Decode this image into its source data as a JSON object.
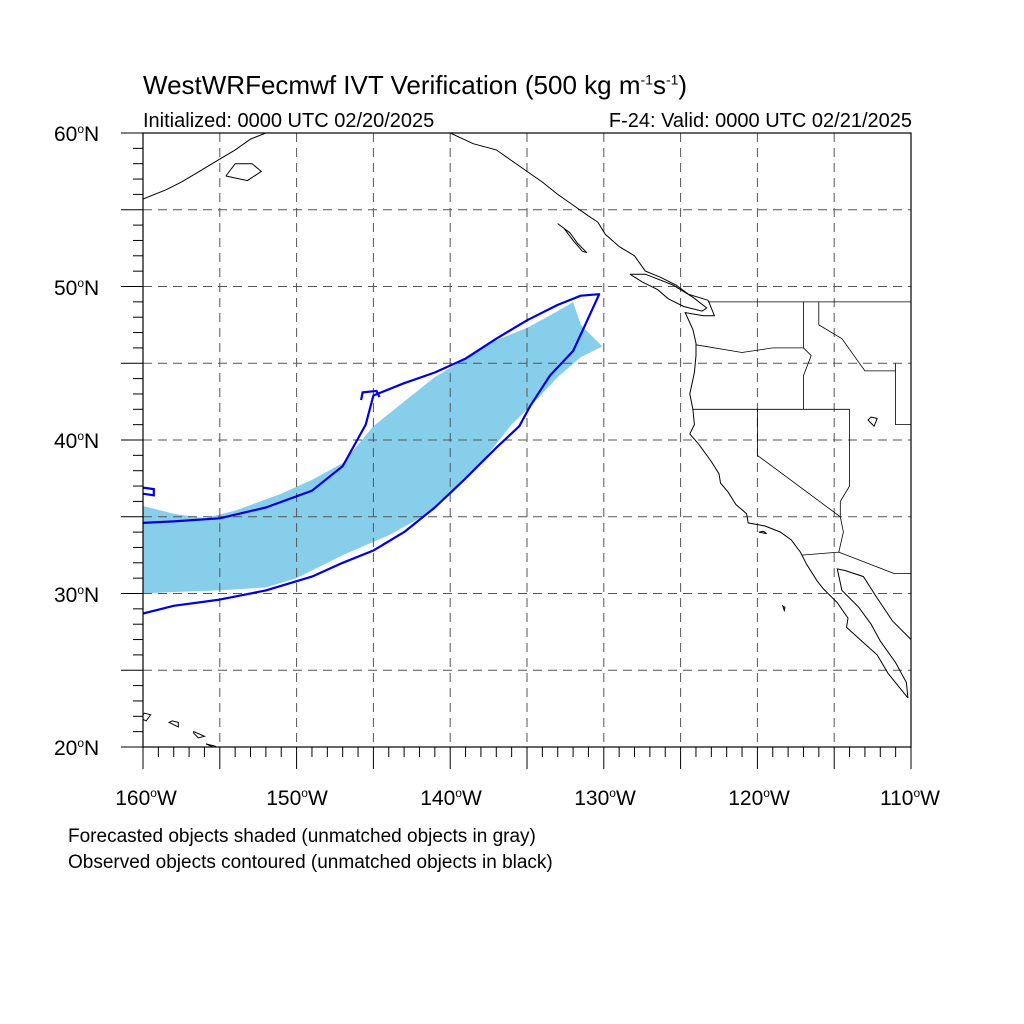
{
  "title": {
    "main": "WestWRFecmwf IVT Verification (500 kg m",
    "sup1": "-1",
    "mid": "s",
    "sup2": "-1",
    "end": ")"
  },
  "subtitle_left": "Initialized: 0000 UTC 02/20/2025",
  "subtitle_right": "F-24: Valid: 0000 UTC 02/21/2025",
  "lat_labels": [
    "60",
    "50",
    "40",
    "30",
    "20"
  ],
  "lon_labels": [
    "160",
    "150",
    "140",
    "130",
    "120",
    "110"
  ],
  "deg": "o",
  "lat_suffix": "N",
  "lon_suffix": "W",
  "notes": [
    "Forecasted objects shaded (unmatched objects in gray)",
    "Observed objects contoured (unmatched objects in black)"
  ],
  "colors": {
    "forecast_fill": "#87ceeb",
    "observed_contour": "#0000e6",
    "coast": "#000000",
    "grid": "#555555"
  },
  "map_extent": {
    "lon": [
      -160,
      -110
    ],
    "lat": [
      20,
      60
    ]
  },
  "forecast_object": [
    [
      -160,
      35.7
    ],
    [
      -158,
      35.2
    ],
    [
      -156,
      34.9
    ],
    [
      -154,
      35.4
    ],
    [
      -151,
      36.5
    ],
    [
      -149,
      37.4
    ],
    [
      -147,
      38.5
    ],
    [
      -145,
      40.9
    ],
    [
      -143,
      42.5
    ],
    [
      -141,
      44.1
    ],
    [
      -139,
      45.3
    ],
    [
      -137,
      46.5
    ],
    [
      -135,
      47.3
    ],
    [
      -133,
      48.4
    ],
    [
      -132,
      49.0
    ],
    [
      -131.5,
      47.5
    ],
    [
      -130.1,
      46.1
    ],
    [
      -131.5,
      45.4
    ],
    [
      -133,
      44.1
    ],
    [
      -134.5,
      42.5
    ],
    [
      -136,
      41.0
    ],
    [
      -138,
      38.5
    ],
    [
      -140,
      36.4
    ],
    [
      -142,
      34.9
    ],
    [
      -144,
      33.8
    ],
    [
      -147,
      32.5
    ],
    [
      -150,
      31.0
    ],
    [
      -152,
      30.4
    ],
    [
      -155,
      30.2
    ],
    [
      -158,
      30.1
    ],
    [
      -160,
      30.0
    ]
  ],
  "observed_object": [
    [
      -160,
      34.6
    ],
    [
      -158,
      34.7
    ],
    [
      -155,
      34.9
    ],
    [
      -152,
      35.6
    ],
    [
      -149,
      36.7
    ],
    [
      -147,
      38.3
    ],
    [
      -145.5,
      41.0
    ],
    [
      -145,
      42.9
    ],
    [
      -143,
      43.7
    ],
    [
      -141,
      44.4
    ],
    [
      -139,
      45.3
    ],
    [
      -137,
      46.6
    ],
    [
      -135,
      47.8
    ],
    [
      -133,
      48.8
    ],
    [
      -131.5,
      49.4
    ],
    [
      -130.3,
      49.5
    ],
    [
      -131.3,
      47.3
    ],
    [
      -132,
      45.8
    ],
    [
      -133.5,
      44.2
    ],
    [
      -134.8,
      42.2
    ],
    [
      -135.5,
      40.9
    ],
    [
      -137,
      39.5
    ],
    [
      -139,
      37.5
    ],
    [
      -141,
      35.6
    ],
    [
      -143,
      34.0
    ],
    [
      -145,
      32.8
    ],
    [
      -147,
      32.0
    ],
    [
      -149,
      31.1
    ],
    [
      -152,
      30.2
    ],
    [
      -155,
      29.6
    ],
    [
      -158,
      29.2
    ],
    [
      -160,
      28.7
    ]
  ]
}
